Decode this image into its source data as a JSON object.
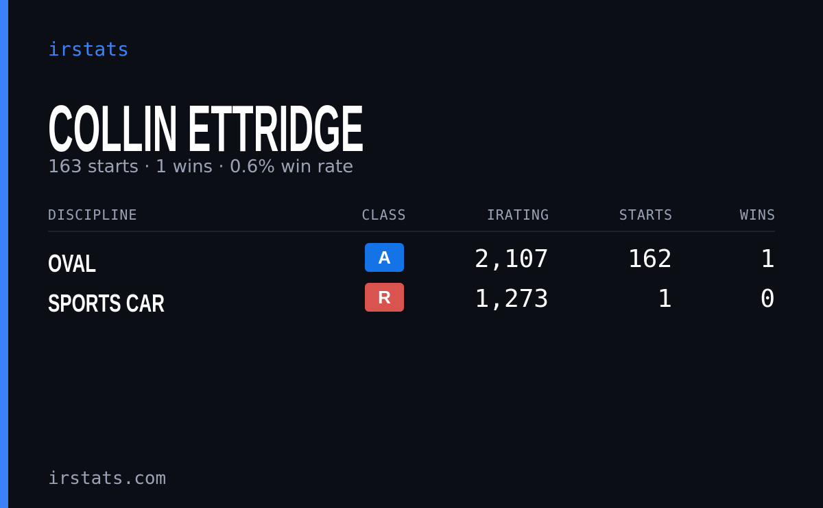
{
  "header": {
    "brand": "irstats",
    "name": "COLLIN ETTRIDGE",
    "summary": "163 starts · 1 wins · 0.6% win rate"
  },
  "table": {
    "columns": [
      "DISCIPLINE",
      "CLASS",
      "IRATING",
      "STARTS",
      "WINS"
    ],
    "rows": [
      [
        "OVAL",
        "A",
        "2,107",
        "162",
        "1"
      ],
      [
        "SPORTS CAR",
        "R",
        "1,273",
        "1",
        "0"
      ]
    ]
  },
  "footer": {
    "site": "irstats.com"
  }
}
